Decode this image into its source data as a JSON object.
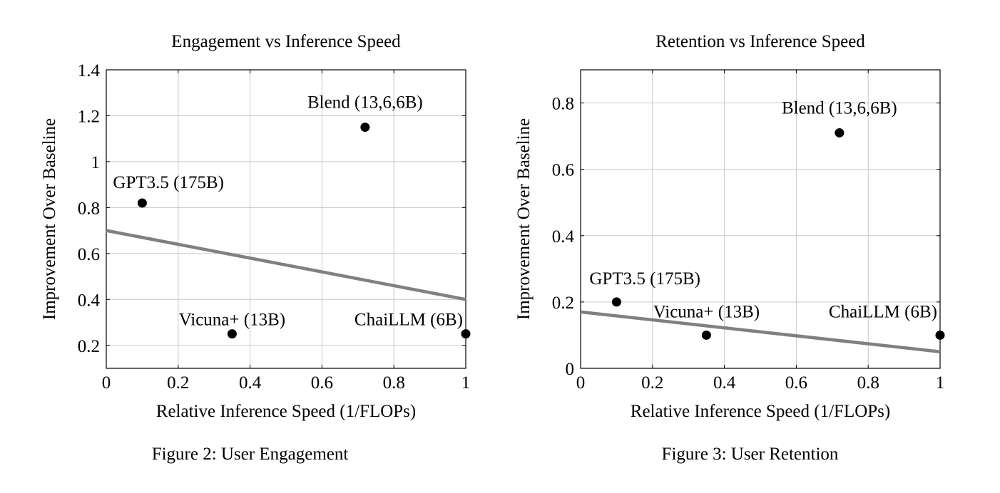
{
  "chart_data": [
    {
      "type": "scatter",
      "title": "Engagement vs Inference Speed",
      "xlabel": "Relative Inference Speed (1/FLOPs)",
      "ylabel": "Improvement Over Baseline",
      "xlim": [
        0,
        1
      ],
      "ylim": [
        0.1,
        1.4
      ],
      "xticks": [
        0,
        0.2,
        0.4,
        0.6,
        0.8,
        1
      ],
      "xtick_labels": [
        "0",
        "0.2",
        "0.4",
        "0.6",
        "0.8",
        "1"
      ],
      "yticks": [
        0.2,
        0.4,
        0.6,
        0.8,
        1,
        1.2,
        1.4
      ],
      "ytick_labels": [
        "0.2",
        "0.4",
        "0.6",
        "0.8",
        "1",
        "1.2",
        "1.4"
      ],
      "grid": true,
      "points": [
        {
          "label": "GPT3.5 (175B)",
          "x": 0.1,
          "y": 0.82
        },
        {
          "label": "Blend (13,6,6B)",
          "x": 0.72,
          "y": 1.15
        },
        {
          "label": "Vicuna+ (13B)",
          "x": 0.35,
          "y": 0.25
        },
        {
          "label": "ChaiLLM (6B)",
          "x": 1.0,
          "y": 0.25
        }
      ],
      "trend_line": {
        "x": [
          0,
          1
        ],
        "y": [
          0.7,
          0.4
        ],
        "color": "#808080"
      },
      "caption": "Figure 2: User Engagement"
    },
    {
      "type": "scatter",
      "title": "Retention vs Inference Speed",
      "xlabel": "Relative Inference Speed (1/FLOPs)",
      "ylabel": "Improvement Over Baseline",
      "xlim": [
        0,
        1
      ],
      "ylim": [
        0,
        0.9
      ],
      "xticks": [
        0,
        0.2,
        0.4,
        0.6,
        0.8,
        1
      ],
      "xtick_labels": [
        "0",
        "0.2",
        "0.4",
        "0.6",
        "0.8",
        "1"
      ],
      "yticks": [
        0,
        0.2,
        0.4,
        0.6,
        0.8
      ],
      "ytick_labels": [
        "0",
        "0.2",
        "0.4",
        "0.6",
        "0.8"
      ],
      "grid": true,
      "points": [
        {
          "label": "GPT3.5 (175B)",
          "x": 0.1,
          "y": 0.2
        },
        {
          "label": "Blend (13,6,6B)",
          "x": 0.72,
          "y": 0.71
        },
        {
          "label": "Vicuna+ (13B)",
          "x": 0.35,
          "y": 0.1
        },
        {
          "label": "ChaiLLM (6B)",
          "x": 1.0,
          "y": 0.1
        }
      ],
      "trend_line": {
        "x": [
          0,
          1
        ],
        "y": [
          0.17,
          0.05
        ],
        "color": "#808080"
      },
      "caption": "Figure 3: User Retention"
    }
  ]
}
